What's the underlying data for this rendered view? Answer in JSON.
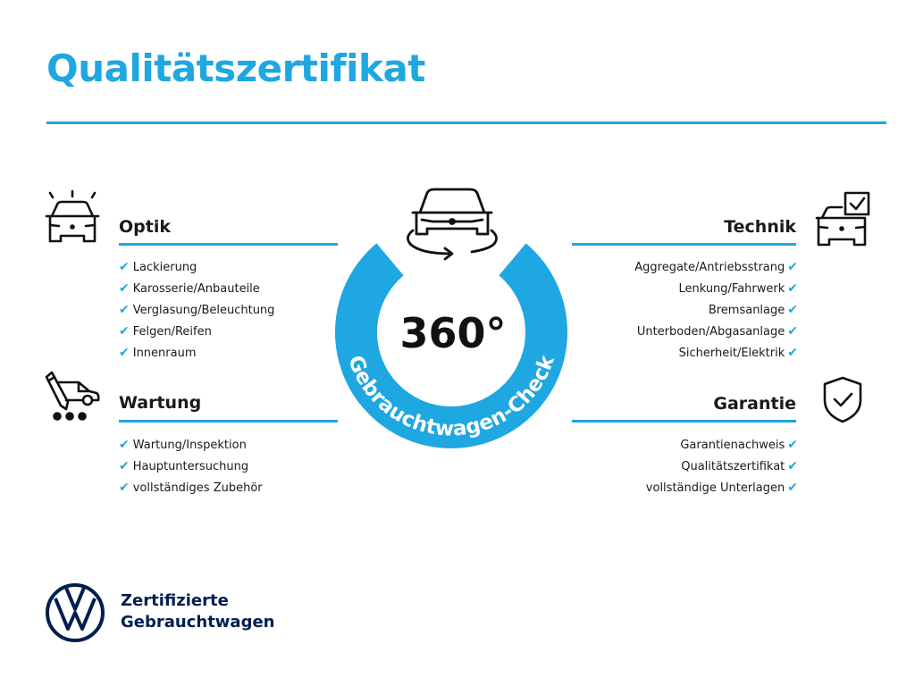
{
  "title": "Qualitätszertifikat",
  "colors": {
    "accent": "#1ea7e1",
    "brand_navy": "#001e50",
    "text": "#1a1a1a"
  },
  "center_badge": {
    "value": "360°",
    "arc_text": "Gebrauchtwagen-Check",
    "icon": "car-rotate-icon"
  },
  "sections": {
    "optik": {
      "heading": "Optik",
      "icon": "car-lights-icon",
      "items": [
        "Lackierung",
        "Karosserie/Anbauteile",
        "Verglasung/Beleuchtung",
        "Felgen/Reifen",
        "Innenraum"
      ]
    },
    "wartung": {
      "heading": "Wartung",
      "icon": "service-car-icon",
      "items": [
        "Wartung/Inspektion",
        "Hauptuntersuchung",
        "vollständiges Zubehör"
      ]
    },
    "technik": {
      "heading": "Technik",
      "icon": "car-checkbox-icon",
      "items": [
        "Aggregate/Antriebsstrang",
        "Lenkung/Fahrwerk",
        "Bremsanlage",
        "Unterboden/Abgasanlage",
        "Sicherheit/Elektrik"
      ]
    },
    "garantie": {
      "heading": "Garantie",
      "icon": "shield-check-icon",
      "items": [
        "Garantienachweis",
        "Qualitätszertifikat",
        "vollständige Unterlagen"
      ]
    }
  },
  "check_mark": "✔",
  "footer": {
    "line1": "Zertifizierte",
    "line2": "Gebrauchtwagen",
    "logo": "vw-logo"
  }
}
